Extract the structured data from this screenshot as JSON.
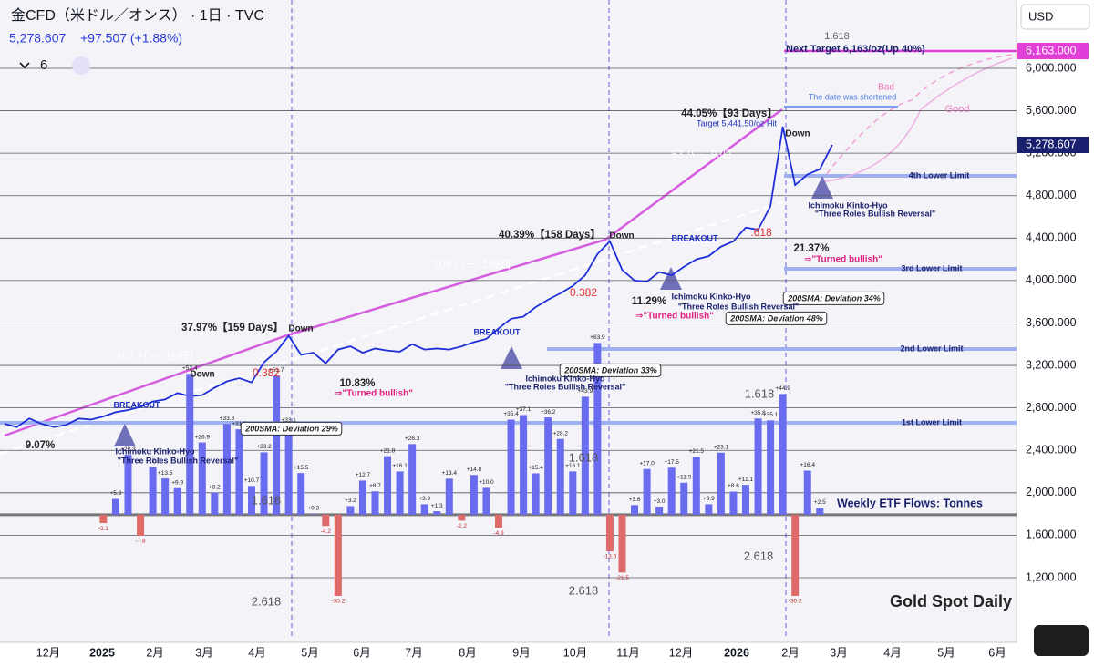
{
  "header": {
    "symbol": "金CFD（米ドル／オンス） · 1日 · TVC",
    "price": "5,278.607",
    "change": "+97.507 (+1.88%)",
    "interval_count": "6"
  },
  "currency": "USD",
  "chart_data": {
    "type": "line",
    "title": "Gold Spot Daily",
    "series": [
      {
        "color": "#1f2fd8",
        "values": [
          2650,
          2620,
          2700,
          2650,
          2620,
          2640,
          2700,
          2690,
          2720,
          2760,
          2780,
          2810,
          2860,
          2880,
          2940,
          2910,
          2920,
          2990,
          3050,
          3080,
          3040,
          3230,
          3330,
          3480,
          3300,
          3320,
          3220,
          3350,
          3380,
          3320,
          3360,
          3340,
          3330,
          3400,
          3350,
          3360,
          3350,
          3380,
          3420,
          3450,
          3550,
          3640,
          3660,
          3750,
          3820,
          3880,
          3950,
          4050,
          4250,
          4370,
          4100,
          4000,
          3990,
          4080,
          4050,
          4130,
          4200,
          4230,
          4320,
          4370,
          4500,
          4480,
          4700,
          5450,
          4900,
          5000,
          5050,
          5278
        ]
      },
      {
        "name": "Weekly ETF Flows: Tonnes",
        "type": "bar",
        "axis": "y2",
        "color": "#6a6cf0",
        "negative_color": "#e06a6a",
        "values": [
          null,
          null,
          null,
          null,
          null,
          null,
          null,
          null,
          -3.1,
          5.9,
          22.3,
          -7.8,
          17.8,
          13.5,
          9.9,
          52.4,
          26.9,
          8.2,
          33.8,
          31.8,
          10.7,
          23.2,
          51.7,
          33.1,
          15.5,
          0.3,
          -4.2,
          -30.2,
          3.2,
          12.7,
          8.7,
          21.8,
          16.1,
          26.3,
          3.9,
          1.3,
          13.4,
          -2.2,
          14.8,
          10.0,
          -4.9,
          35.4,
          37.1,
          15.4,
          36.2,
          28.2,
          16.1,
          43.9,
          63.9,
          -13.6,
          -21.5,
          3.6,
          17.0,
          3.0,
          17.5,
          11.9,
          21.5,
          3.9,
          23.1,
          8.6,
          11.1,
          35.8,
          35.1,
          44.9,
          -30.2,
          16.4,
          2.5,
          null
        ],
        "value_labels": [
          null,
          null,
          null,
          null,
          null,
          null,
          null,
          null,
          "-3.1",
          "+5.9",
          "+22.3",
          "-7.8",
          "+17.8",
          "+13.5",
          "+9.9",
          "+52.4",
          "+26.9",
          "+8.2",
          "+33.8",
          "+31.8",
          "+10.7",
          "+23.2",
          "+51.7",
          "+33.1",
          "+15.5",
          "+0.3",
          "-4.2",
          "-30.2",
          "+3.2",
          "+12.7",
          "+8.7",
          "+21.8",
          "+16.1",
          "+26.3",
          "+3.9",
          "+1.3",
          "+13.4",
          "-2.2",
          "+14.8",
          "+10.0",
          "-4.9",
          "+35.4",
          "+37.1",
          "+15.4",
          "+36.2",
          "+28.2",
          "+16.1",
          "+43.9",
          "+63.9",
          "-13.6",
          "-21.5",
          "+3.6",
          "+17.0",
          "+3.0",
          "+17.5",
          "+11.9",
          "+21.5",
          "+3.9",
          "+23.1",
          "+8.6",
          "+11.1",
          "+35.8",
          "+35.1",
          "+44.9",
          "-30.2",
          "+16.4",
          "+2.5",
          null
        ]
      }
    ],
    "ylim": [
      633,
      6644
    ],
    "yticks": [
      {
        "value": 1200,
        "label": "1,200.000"
      },
      {
        "value": 1600,
        "label": "1,600.000"
      },
      {
        "value": 2000,
        "label": "2,000.000"
      },
      {
        "value": 2400,
        "label": "2,400.000"
      },
      {
        "value": 2800,
        "label": "2,800.000"
      },
      {
        "value": 3200,
        "label": "3,200.000"
      },
      {
        "value": 3600,
        "label": "3,600.000"
      },
      {
        "value": 4000,
        "label": "4,000.000"
      },
      {
        "value": 4400,
        "label": "4,400.000"
      },
      {
        "value": 4800,
        "label": "4,800.000"
      },
      {
        "value": 5200,
        "label": "5,200.000"
      },
      {
        "value": 5600,
        "label": "5,600.000"
      },
      {
        "value": 6000,
        "label": "6,000.000"
      }
    ],
    "y2lim": [
      -45.8,
      191.5
    ],
    "grid": true,
    "x_labels": [
      "12月",
      "2025",
      "2月",
      "3月",
      "4月",
      "5月",
      "6月",
      "7月",
      "8月",
      "9月",
      "10月",
      "11月",
      "12月",
      "2026",
      "2月",
      "3月",
      "4月",
      "5月",
      "6月"
    ],
    "price_labels": [
      {
        "value": 6163,
        "label": "6,163.000",
        "color": "#e040d8"
      },
      {
        "value": 5278.607,
        "label": "5,278.607",
        "color": "#1a1f6e"
      }
    ],
    "annotations": [
      "Next Target 6,163/oz(Up 40%)",
      "1.618",
      "44.05%【93 Days】",
      "Target 5,441.50/oz Hit",
      "The date was shortened",
      "Bad",
      "Good",
      "Down",
      "4th Lower Limit",
      "3rd Lower Limit",
      "2nd Lower Limit",
      "1st Lower Limit",
      "Ichimoku Kinko-Hyo",
      "\"Three Roles Bullish Reversal\"",
      "40.39%【158 Days】",
      "Down",
      "108 バー, 158日",
      "BREAKOUT",
      "11.29%",
      "⇒\"Turned bullish\"",
      "200SMA: Deviation 34%",
      "200SMA: Deviation 48%",
      "21.37%",
      "⇒\"Turned bullish\"",
      "37.97%【159 Days】",
      "Down",
      "107 バー, 159日",
      "BREAKOUT",
      "10.83%",
      "⇒\"Turned bullish\"",
      "200SMA: Deviation 33%",
      "Ichimoku Kinko-Hyo",
      "\"Three Roles Bullish Reversal\"",
      "Down",
      "BREAKOUT",
      "200SMA: Deviation 29%",
      "9.07%",
      "Ichimoku Kinko-Hyo",
      "\"Three Roles Bullish Reversal\"",
      "Ichimoku Kinko-Hyo",
      "\"Three Roles Bullish Reversal\"",
      "1.618",
      "1.618",
      "1.618",
      "2.618",
      "2.618",
      "2.618",
      "63 バー, 93日",
      "0.382",
      "0.382",
      ".618"
    ]
  }
}
